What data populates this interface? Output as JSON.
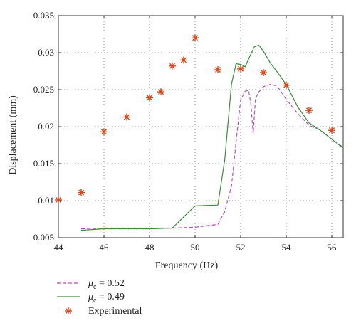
{
  "chart_data": {
    "type": "line",
    "xlabel": "Frequency (Hz)",
    "ylabel": "Displacement (mm)",
    "xlim": [
      44,
      56.5
    ],
    "ylim": [
      0.005,
      0.035
    ],
    "x_ticks": [
      "44",
      "46",
      "48",
      "50",
      "52",
      "54",
      "56"
    ],
    "y_ticks": [
      "0.005",
      "0.01",
      "0.015",
      "0.02",
      "0.025",
      "0.03",
      "0.035"
    ],
    "grid": true,
    "legend_position": "bottom-left",
    "series": [
      {
        "name_symbol": "μ",
        "name_subscript": "c",
        "name_value": " = 0.52",
        "style": "dashed",
        "color": "#b44fb8",
        "points": [
          [
            45,
            0.0062
          ],
          [
            46,
            0.0063
          ],
          [
            47,
            0.0063
          ],
          [
            48,
            0.0063
          ],
          [
            49,
            0.0063
          ],
          [
            50,
            0.0064
          ],
          [
            51,
            0.0068
          ],
          [
            51.3,
            0.0085
          ],
          [
            51.6,
            0.012
          ],
          [
            51.8,
            0.018
          ],
          [
            52,
            0.0236
          ],
          [
            52.2,
            0.0248
          ],
          [
            52.35,
            0.0249
          ],
          [
            52.45,
            0.023
          ],
          [
            52.55,
            0.019
          ],
          [
            52.65,
            0.0238
          ],
          [
            52.8,
            0.0247
          ],
          [
            53,
            0.0254
          ],
          [
            53.3,
            0.0257
          ],
          [
            53.6,
            0.0255
          ],
          [
            54,
            0.0237
          ],
          [
            54.5,
            0.0218
          ],
          [
            55,
            0.0202
          ],
          [
            55.5,
            0.0195
          ],
          [
            56,
            0.0183
          ],
          [
            56.5,
            0.0172
          ]
        ]
      },
      {
        "name_symbol": "μ",
        "name_subscript": "c",
        "name_value": " = 0.49",
        "style": "solid",
        "color": "#3a8a3a",
        "points": [
          [
            45,
            0.006
          ],
          [
            46,
            0.0062
          ],
          [
            47,
            0.0062
          ],
          [
            48,
            0.0062
          ],
          [
            49,
            0.0063
          ],
          [
            50,
            0.0093
          ],
          [
            51,
            0.0094
          ],
          [
            51.3,
            0.0155
          ],
          [
            51.6,
            0.0258
          ],
          [
            51.8,
            0.0285
          ],
          [
            52,
            0.0284
          ],
          [
            52.2,
            0.0281
          ],
          [
            52.4,
            0.0295
          ],
          [
            52.6,
            0.0308
          ],
          [
            52.8,
            0.031
          ],
          [
            53,
            0.0302
          ],
          [
            53.3,
            0.0286
          ],
          [
            53.6,
            0.0274
          ],
          [
            54,
            0.0257
          ],
          [
            54.5,
            0.0227
          ],
          [
            55,
            0.0205
          ],
          [
            55.5,
            0.0195
          ],
          [
            56,
            0.0183
          ],
          [
            56.5,
            0.0171
          ]
        ]
      },
      {
        "name": "Experimental",
        "style": "markers",
        "marker": "asterisk",
        "color": "#d44a1e",
        "points": [
          [
            44,
            0.0101
          ],
          [
            45,
            0.0111
          ],
          [
            46,
            0.0193
          ],
          [
            47,
            0.0213
          ],
          [
            48,
            0.0239
          ],
          [
            48.5,
            0.0247
          ],
          [
            49,
            0.0282
          ],
          [
            49.5,
            0.029
          ],
          [
            50,
            0.032
          ],
          [
            51,
            0.0277
          ],
          [
            52,
            0.0278
          ],
          [
            53,
            0.0273
          ],
          [
            54,
            0.0256
          ],
          [
            55,
            0.0222
          ],
          [
            56,
            0.0195
          ]
        ]
      }
    ]
  }
}
